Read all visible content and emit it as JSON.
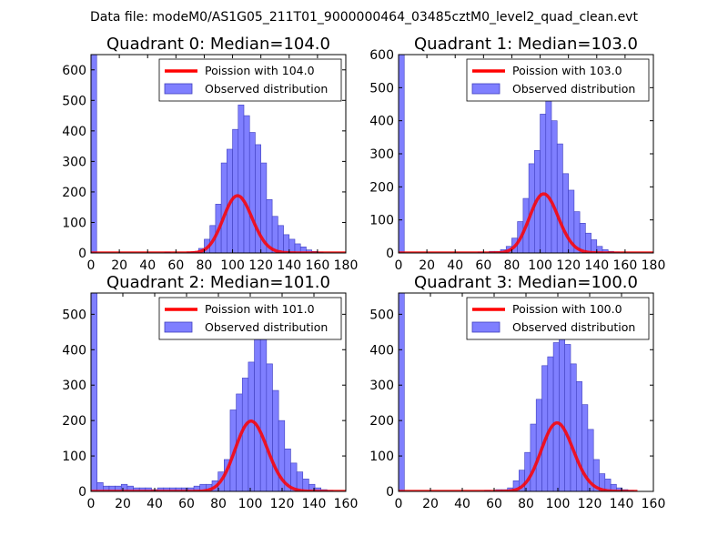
{
  "figure": {
    "suptitle": "Data file: modeM0/AS1G05_211T01_9000000464_03485cztM0_level2_quad_clean.evt"
  },
  "colors": {
    "bar_fill": "#7f7fff",
    "bar_edge": "#3f3fbf",
    "line": "#ff0000",
    "background": "#ffffff"
  },
  "chart_data": [
    {
      "type": "bar",
      "title": "Quadrant 0: Median=104.0",
      "xlim": [
        0,
        180
      ],
      "ylim": [
        0,
        650
      ],
      "xticks": [
        0,
        20,
        40,
        60,
        80,
        100,
        120,
        140,
        160,
        180
      ],
      "yticks": [
        0,
        100,
        200,
        300,
        400,
        500,
        600
      ],
      "legend": [
        "Poission with 104.0",
        "Observed distribution"
      ],
      "legend_position": "top-right",
      "bin_width": 4,
      "bins": [
        [
          0,
          650
        ],
        [
          52,
          3
        ],
        [
          68,
          3
        ],
        [
          72,
          5
        ],
        [
          76,
          15
        ],
        [
          80,
          45
        ],
        [
          84,
          90
        ],
        [
          88,
          160
        ],
        [
          92,
          295
        ],
        [
          96,
          340
        ],
        [
          100,
          405
        ],
        [
          104,
          485
        ],
        [
          108,
          450
        ],
        [
          112,
          395
        ],
        [
          116,
          355
        ],
        [
          120,
          295
        ],
        [
          124,
          175
        ],
        [
          128,
          120
        ],
        [
          132,
          90
        ],
        [
          136,
          60
        ],
        [
          140,
          45
        ],
        [
          144,
          30
        ],
        [
          148,
          20
        ],
        [
          152,
          10
        ],
        [
          156,
          5
        ],
        [
          160,
          3
        ]
      ],
      "poisson_mean": 104.0,
      "poisson_scale": 4800,
      "curve_x": [
        0,
        180
      ]
    },
    {
      "type": "bar",
      "title": "Quadrant 1: Median=103.0",
      "xlim": [
        0,
        180
      ],
      "ylim": [
        0,
        600
      ],
      "xticks": [
        0,
        20,
        40,
        60,
        80,
        100,
        120,
        140,
        160,
        180
      ],
      "yticks": [
        0,
        100,
        200,
        300,
        400,
        500,
        600
      ],
      "legend": [
        "Poission with 103.0",
        "Observed distribution"
      ],
      "legend_position": "top-right",
      "bin_width": 4,
      "bins": [
        [
          0,
          600
        ],
        [
          56,
          3
        ],
        [
          64,
          5
        ],
        [
          68,
          5
        ],
        [
          72,
          10
        ],
        [
          76,
          20
        ],
        [
          80,
          45
        ],
        [
          84,
          95
        ],
        [
          88,
          165
        ],
        [
          92,
          270
        ],
        [
          96,
          310
        ],
        [
          100,
          420
        ],
        [
          104,
          460
        ],
        [
          108,
          400
        ],
        [
          112,
          330
        ],
        [
          116,
          240
        ],
        [
          120,
          190
        ],
        [
          124,
          125
        ],
        [
          128,
          90
        ],
        [
          132,
          60
        ],
        [
          136,
          40
        ],
        [
          140,
          20
        ],
        [
          144,
          10
        ],
        [
          148,
          5
        ],
        [
          152,
          3
        ]
      ],
      "poisson_mean": 103.0,
      "poisson_scale": 4550,
      "curve_x": [
        0,
        180
      ]
    },
    {
      "type": "bar",
      "title": "Quadrant 2: Median=101.0",
      "xlim": [
        0,
        160
      ],
      "ylim": [
        0,
        560
      ],
      "xticks": [
        0,
        20,
        40,
        60,
        80,
        100,
        120,
        140,
        160
      ],
      "yticks": [
        0,
        100,
        200,
        300,
        400,
        500
      ],
      "legend": [
        "Poission with 101.0",
        "Observed distribution"
      ],
      "legend_position": "top-right",
      "bin_width": 3.8,
      "bins": [
        [
          0,
          560
        ],
        [
          3.8,
          25
        ],
        [
          7.6,
          15
        ],
        [
          11.4,
          15
        ],
        [
          15.2,
          15
        ],
        [
          19,
          20
        ],
        [
          22.8,
          15
        ],
        [
          26.6,
          10
        ],
        [
          30.4,
          10
        ],
        [
          34.2,
          10
        ],
        [
          38,
          5
        ],
        [
          41.8,
          10
        ],
        [
          45.6,
          10
        ],
        [
          49.4,
          10
        ],
        [
          53.2,
          10
        ],
        [
          57,
          10
        ],
        [
          60.8,
          10
        ],
        [
          64.6,
          15
        ],
        [
          68.4,
          20
        ],
        [
          72.2,
          20
        ],
        [
          76,
          30
        ],
        [
          79.8,
          55
        ],
        [
          83.6,
          90
        ],
        [
          87.4,
          230
        ],
        [
          91.2,
          275
        ],
        [
          95,
          320
        ],
        [
          98.8,
          365
        ],
        [
          102.6,
          440
        ],
        [
          106.4,
          465
        ],
        [
          110.2,
          360
        ],
        [
          114,
          285
        ],
        [
          117.8,
          200
        ],
        [
          121.6,
          120
        ],
        [
          125.4,
          80
        ],
        [
          129.2,
          55
        ],
        [
          133,
          35
        ],
        [
          136.8,
          20
        ],
        [
          140.6,
          10
        ],
        [
          144.4,
          5
        ],
        [
          148.2,
          3
        ]
      ],
      "poisson_mean": 101.0,
      "poisson_scale": 5000,
      "curve_x": [
        0,
        160
      ]
    },
    {
      "type": "bar",
      "title": "Quadrant 3: Median=100.0",
      "xlim": [
        0,
        160
      ],
      "ylim": [
        0,
        560
      ],
      "xticks": [
        0,
        20,
        40,
        60,
        80,
        100,
        120,
        140,
        160
      ],
      "yticks": [
        0,
        100,
        200,
        300,
        400,
        500
      ],
      "legend": [
        "Poission with 100.0",
        "Observed distribution"
      ],
      "legend_position": "top-right",
      "bin_width": 3.6,
      "bins": [
        [
          0,
          560
        ],
        [
          54,
          3
        ],
        [
          61,
          5
        ],
        [
          64.8,
          5
        ],
        [
          68.4,
          10
        ],
        [
          72,
          30
        ],
        [
          75.6,
          60
        ],
        [
          79.2,
          110
        ],
        [
          82.8,
          190
        ],
        [
          86.4,
          260
        ],
        [
          90,
          355
        ],
        [
          93.6,
          380
        ],
        [
          97.2,
          420
        ],
        [
          100.8,
          500
        ],
        [
          104.4,
          415
        ],
        [
          108,
          360
        ],
        [
          111.6,
          310
        ],
        [
          115.2,
          245
        ],
        [
          118.8,
          175
        ],
        [
          122.4,
          90
        ],
        [
          126,
          50
        ],
        [
          129.6,
          35
        ],
        [
          133.2,
          20
        ],
        [
          136.8,
          10
        ],
        [
          140.4,
          5
        ],
        [
          144,
          3
        ]
      ],
      "poisson_mean": 100.0,
      "poisson_scale": 4850,
      "curve_x": [
        0,
        150
      ]
    }
  ]
}
